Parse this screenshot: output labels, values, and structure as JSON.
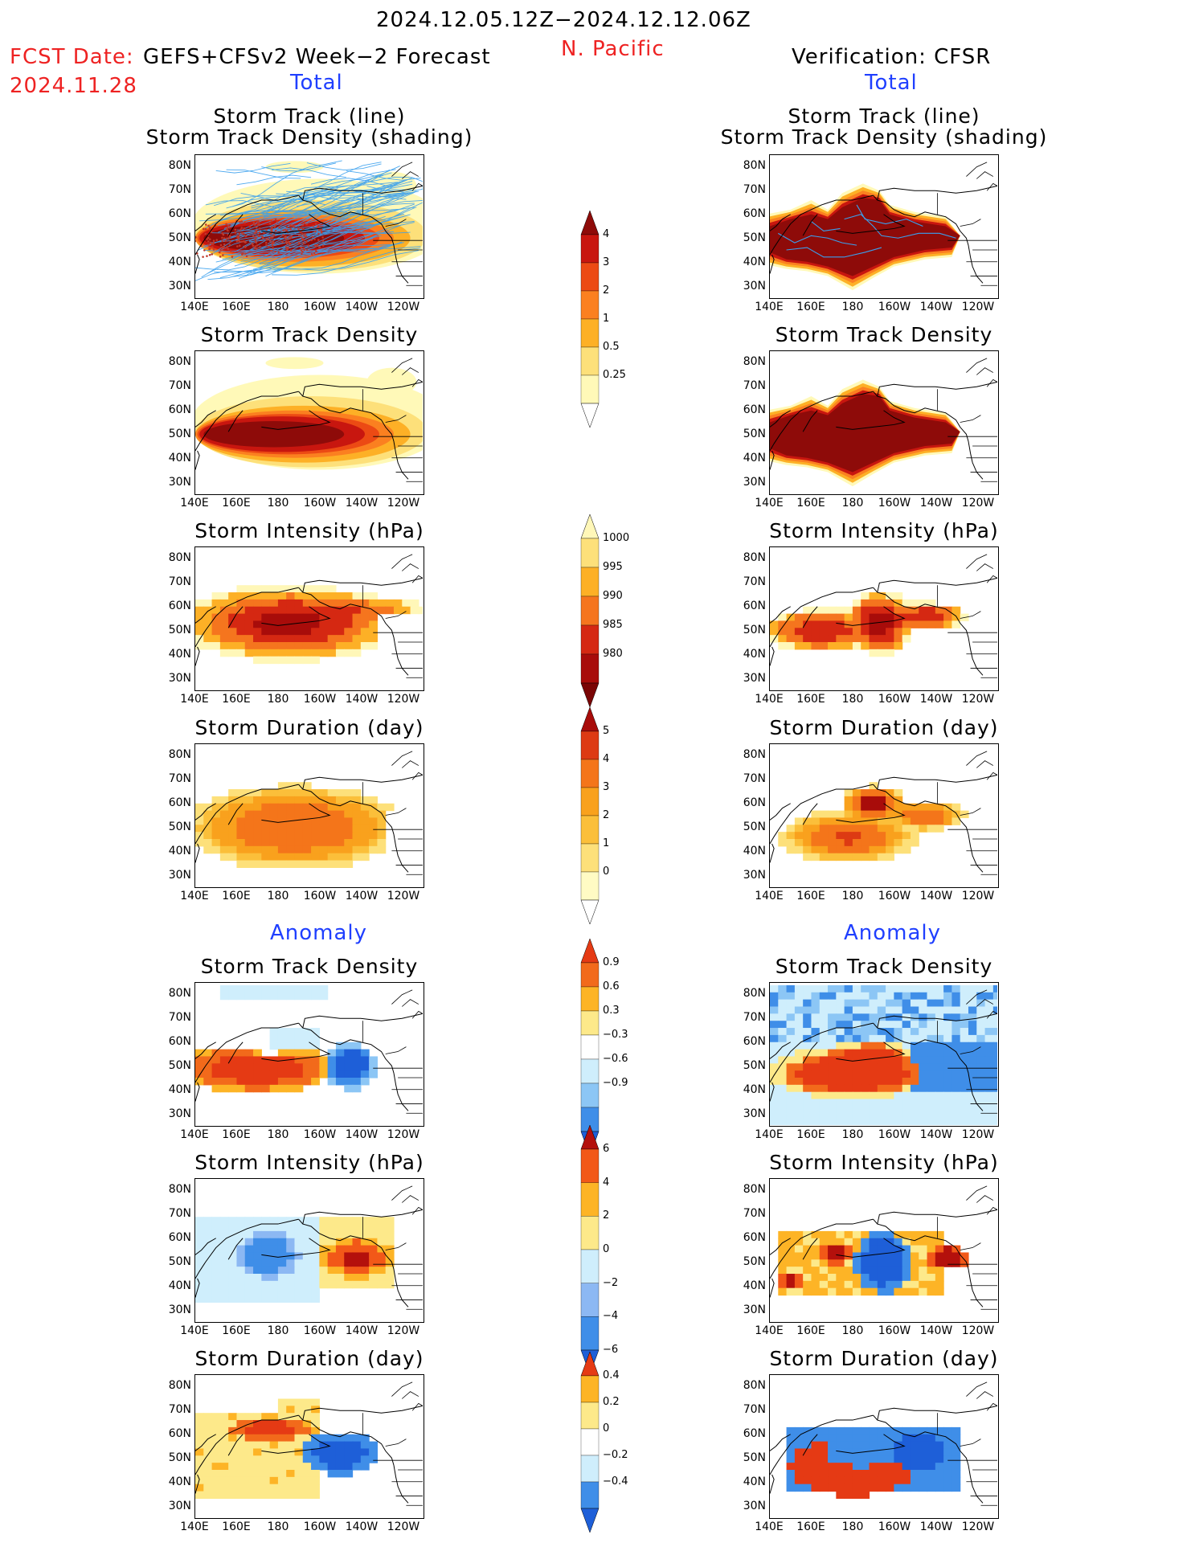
{
  "header": {
    "valid_period": "2024.12.05.12Z−2024.12.12.06Z",
    "region": "N. Pacific",
    "fcst_date_label": "FCST Date:",
    "fcst_model": "GEFS+CFSv2 Week−2 Forecast",
    "fcst_date": "2024.11.28",
    "verification": "Verification: CFSR",
    "total_label": "Total",
    "anomaly_label": "Anomaly"
  },
  "axes": {
    "lat_labels": [
      "80N",
      "70N",
      "60N",
      "50N",
      "40N",
      "30N"
    ],
    "lon_labels": [
      "140E",
      "160E",
      "180",
      "160W",
      "140W",
      "120W"
    ]
  },
  "colors": {
    "dens": [
      "#fff9b8",
      "#fde07a",
      "#fdb026",
      "#fb8020",
      "#ec4a14",
      "#c8160f",
      "#8e0b09"
    ],
    "intensity": [
      "#fff7b8",
      "#fdb026",
      "#f5751e",
      "#d52812",
      "#a80c0a",
      "#7a0505"
    ],
    "duration": [
      "#fffbc4",
      "#fde07a",
      "#fbbf3a",
      "#f9a11d",
      "#f4751a",
      "#dd3a13",
      "#a80c0a"
    ],
    "anom": [
      "#1e5fd8",
      "#3f8ee8",
      "#8cc6f5",
      "#cfeefc",
      "#ffffff",
      "#fde98a",
      "#fdb426",
      "#f26a1b",
      "#e53a14"
    ],
    "anom_int": [
      "#1e5fd8",
      "#3f8ee8",
      "#8cb8f3",
      "#cfeefc",
      "#fde98a",
      "#fdb426",
      "#f25818",
      "#b4100c"
    ],
    "track_line": "#3aa0ee",
    "track_points": "#c0392b"
  },
  "sections": [
    {
      "title_line1": "Storm Track (line)",
      "title_line2": "Storm Track Density (shading)"
    },
    {
      "title_line1": "Storm Track Density"
    },
    {
      "title_line1": "Storm Intensity (hPa)"
    },
    {
      "title_line1": "Storm Duration (day)"
    },
    {
      "title_line1": "Storm Track Density"
    },
    {
      "title_line1": "Storm Intensity (hPa)"
    },
    {
      "title_line1": "Storm Duration (day)"
    }
  ],
  "colorbars": [
    {
      "levels": [
        "4",
        "3",
        "2",
        "1",
        "0.5",
        "0.25"
      ]
    },
    {
      "levels": [
        "1000",
        "995",
        "990",
        "985",
        "980"
      ]
    },
    {
      "levels": [
        "5",
        "4",
        "3",
        "2",
        "1",
        "0"
      ]
    },
    {
      "levels": [
        "0.9",
        "0.6",
        "0.3",
        "−0.3",
        "−0.6",
        "−0.9"
      ]
    },
    {
      "levels": [
        "6",
        "4",
        "2",
        "0",
        "−2",
        "−4",
        "−6"
      ]
    },
    {
      "levels": [
        "0.4",
        "0.2",
        "0",
        "−0.2",
        "−0.4"
      ]
    }
  ],
  "chart_data": [
    {
      "type": "heatmap",
      "panel": "Forecast Storm Track (line) / Storm Track Density (shading)",
      "ylim": [
        25,
        85
      ],
      "xlim": [
        140,
        250
      ],
      "max_value_region": "40N-55N, 145E-170W",
      "max_value": ">4"
    },
    {
      "type": "heatmap",
      "panel": "Verification Storm Track (line) / Storm Track Density (shading)",
      "ylim": [
        25,
        85
      ],
      "xlim": [
        140,
        250
      ],
      "max_value_region": "40N-60N, 140E-145W",
      "max_value": ">4"
    },
    {
      "type": "heatmap",
      "panel": "Forecast Storm Intensity (hPa)",
      "min_value_region": "45N-60N, 165E-165W",
      "min_value": "<985"
    },
    {
      "type": "heatmap",
      "panel": "Verification Storm Intensity (hPa)",
      "min_value_region": "40N-65N, 175W-150W",
      "min_value": "<980"
    },
    {
      "type": "heatmap",
      "panel": "Forecast Storm Duration (day)",
      "max_value_region": "35N-60N, 160E-160W",
      "max_value": "3-4"
    },
    {
      "type": "heatmap",
      "panel": "Verification Storm Duration (day)",
      "max_value_region": "55N-65N, 175W-155W",
      "max_value": ">4"
    },
    {
      "type": "heatmap",
      "panel": "Forecast Storm Track Density Anomaly",
      "positive_region": "45N-60N, 140E-160W",
      "negative_region": "40N-60N, 150W-130W"
    },
    {
      "type": "heatmap",
      "panel": "Verification Storm Track Density Anomaly",
      "positive_region": "35N-60N, 140E-145W",
      "negative_region": "60N-85N"
    },
    {
      "type": "heatmap",
      "panel": "Forecast Storm Intensity Anomaly (hPa)",
      "positive_region": "40N-60N, 160W-130W",
      "negative_region": "45N-65N, 150E-175W"
    },
    {
      "type": "heatmap",
      "panel": "Verification Storm Intensity Anomaly (hPa)",
      "positive_region": "50N-60N, 140W-135W",
      "negative_region": "40N-65N, 170W-150W"
    },
    {
      "type": "heatmap",
      "panel": "Forecast Storm Duration Anomaly (day)",
      "positive_region": "55N-65N, 145E-175W",
      "negative_region": "40N-60N, 165W-130W"
    },
    {
      "type": "heatmap",
      "panel": "Verification Storm Duration Anomaly (day)",
      "positive_region": "35N-65N, 150E-150W",
      "negative_region": "45N-60N, 160W-140W"
    }
  ]
}
